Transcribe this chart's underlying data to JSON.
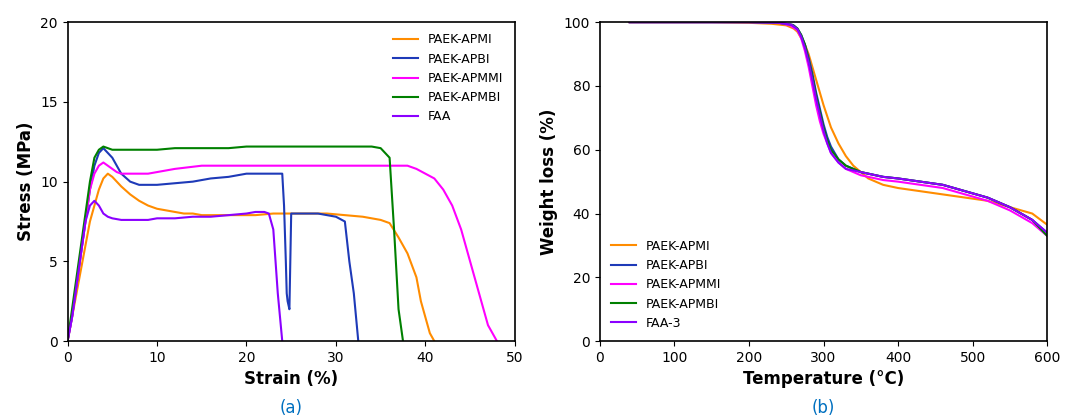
{
  "plot_a": {
    "title": "(a)",
    "xlabel": "Strain (%)",
    "ylabel": "Stress (MPa)",
    "xlim": [
      0,
      50
    ],
    "ylim": [
      0,
      20
    ],
    "xticks": [
      0,
      10,
      20,
      30,
      40,
      50
    ],
    "yticks": [
      0,
      5,
      10,
      15,
      20
    ],
    "legend_labels": [
      "PAEK-APMI",
      "PAEK-APBI",
      "PAEK-APMMI",
      "PAEK-APMBI",
      "FAA"
    ],
    "colors": [
      "#FF8C00",
      "#1E3AB8",
      "#FF00FF",
      "#008000",
      "#8B00FF"
    ],
    "series": {
      "PAEK_APMI": {
        "color": "#FF8C00",
        "x": [
          0,
          0.5,
          1,
          1.5,
          2,
          2.5,
          3,
          3.5,
          4,
          4.5,
          5,
          5.5,
          6,
          7,
          8,
          9,
          10,
          11,
          12,
          13,
          14,
          15,
          17,
          19,
          21,
          23,
          25,
          27,
          29,
          31,
          33,
          35,
          36,
          37,
          38,
          39,
          39.5,
          40,
          40.5,
          41
        ],
        "y": [
          0,
          1.5,
          3,
          4.5,
          6,
          7.5,
          8.5,
          9.5,
          10.2,
          10.5,
          10.3,
          10.0,
          9.7,
          9.2,
          8.8,
          8.5,
          8.3,
          8.2,
          8.1,
          8.0,
          8.0,
          7.9,
          7.9,
          7.9,
          7.9,
          8.0,
          8.0,
          8.0,
          8.0,
          7.9,
          7.8,
          7.6,
          7.4,
          6.5,
          5.5,
          4.0,
          2.5,
          1.5,
          0.5,
          0
        ]
      },
      "PAEK_APBI": {
        "color": "#1E3AB8",
        "x": [
          0,
          0.5,
          1,
          1.5,
          2,
          2.5,
          3,
          3.5,
          4,
          4.5,
          5,
          5.5,
          6,
          7,
          8,
          9,
          10,
          12,
          14,
          16,
          18,
          20,
          22,
          23,
          24,
          24.2,
          24.4,
          24.5,
          24.6,
          24.8,
          25,
          26,
          27,
          28,
          29,
          30,
          31,
          31.5,
          32,
          32.5
        ],
        "y": [
          0,
          1.5,
          3.5,
          5.5,
          7.5,
          9.5,
          11.0,
          11.8,
          12.1,
          11.8,
          11.5,
          11.0,
          10.5,
          10.0,
          9.8,
          9.8,
          9.8,
          9.9,
          10.0,
          10.2,
          10.3,
          10.5,
          10.5,
          10.5,
          10.5,
          8.5,
          5.0,
          3.0,
          2.5,
          2.0,
          8.0,
          8.0,
          8.0,
          8.0,
          7.9,
          7.8,
          7.5,
          5.0,
          3.0,
          0
        ]
      },
      "PAEK_APMMI": {
        "color": "#FF00FF",
        "x": [
          0,
          0.5,
          1,
          1.5,
          2,
          2.5,
          3,
          3.5,
          4,
          4.5,
          5,
          5.5,
          6,
          7,
          8,
          9,
          10,
          12,
          15,
          18,
          20,
          22,
          25,
          28,
          30,
          32,
          34,
          36,
          38,
          39,
          40,
          41,
          42,
          43,
          44,
          45,
          46,
          46.5,
          47,
          47.5,
          48
        ],
        "y": [
          0,
          1.5,
          3.5,
          5.5,
          7.5,
          9.5,
          10.5,
          11.0,
          11.2,
          11.0,
          10.8,
          10.6,
          10.5,
          10.5,
          10.5,
          10.5,
          10.6,
          10.8,
          11.0,
          11.0,
          11.0,
          11.0,
          11.0,
          11.0,
          11.0,
          11.0,
          11.0,
          11.0,
          11.0,
          10.8,
          10.5,
          10.2,
          9.5,
          8.5,
          7.0,
          5.0,
          3.0,
          2.0,
          1.0,
          0.5,
          0
        ]
      },
      "PAEK_APMBI": {
        "color": "#008000",
        "x": [
          0,
          0.5,
          1,
          1.5,
          2,
          2.5,
          3,
          3.5,
          4,
          5,
          6,
          7,
          8,
          10,
          12,
          15,
          18,
          20,
          22,
          25,
          28,
          30,
          32,
          34,
          35,
          36,
          36.5,
          37,
          37.5
        ],
        "y": [
          0,
          2,
          4,
          6,
          8,
          10,
          11.5,
          12.0,
          12.2,
          12.0,
          12.0,
          12.0,
          12.0,
          12.0,
          12.1,
          12.1,
          12.1,
          12.2,
          12.2,
          12.2,
          12.2,
          12.2,
          12.2,
          12.2,
          12.1,
          11.5,
          7.0,
          2.0,
          0
        ]
      },
      "FAA": {
        "color": "#8B00FF",
        "x": [
          0,
          0.5,
          1,
          1.5,
          2,
          2.5,
          3,
          3.5,
          4,
          4.5,
          5,
          6,
          7,
          8,
          9,
          10,
          12,
          14,
          16,
          18,
          20,
          21,
          22,
          22.5,
          23,
          23.5,
          24
        ],
        "y": [
          0,
          1.5,
          3.5,
          5.5,
          7.5,
          8.5,
          8.8,
          8.5,
          8.0,
          7.8,
          7.7,
          7.6,
          7.6,
          7.6,
          7.6,
          7.7,
          7.7,
          7.8,
          7.8,
          7.9,
          8.0,
          8.1,
          8.1,
          8.0,
          7.0,
          3.0,
          0
        ]
      }
    }
  },
  "plot_b": {
    "title": "(b)",
    "xlabel": "Temperature (°C)",
    "ylabel": "Weight loss (%)",
    "xlim": [
      0,
      600
    ],
    "ylim": [
      0,
      100
    ],
    "xticks": [
      0,
      100,
      200,
      300,
      400,
      500,
      600
    ],
    "yticks": [
      0,
      20,
      40,
      60,
      80,
      100
    ],
    "legend_labels": [
      "PAEK-APMI",
      "PAEK-APBI",
      "PAEK-APMMI",
      "PAEK-APMBI",
      "FAA-3"
    ],
    "colors": [
      "#FF8C00",
      "#1E3AB8",
      "#FF00FF",
      "#008000",
      "#8B00FF"
    ],
    "series": {
      "PAEK_APMI": {
        "color": "#FF8C00",
        "x": [
          40,
          100,
          150,
          200,
          230,
          250,
          260,
          265,
          270,
          275,
          280,
          285,
          290,
          295,
          300,
          310,
          320,
          330,
          340,
          350,
          360,
          370,
          380,
          390,
          400,
          430,
          460,
          490,
          520,
          550,
          580,
          600
        ],
        "y": [
          100,
          100,
          100,
          99.8,
          99.5,
          99.0,
          98.0,
          97.0,
          95.0,
          93.0,
          90.0,
          86.0,
          82.0,
          78.0,
          74.0,
          67.0,
          62.0,
          58.0,
          55.0,
          53.0,
          51.0,
          50.0,
          49.0,
          48.5,
          48.0,
          47.0,
          46.0,
          45.0,
          44.0,
          42.0,
          40.0,
          36.5
        ]
      },
      "PAEK_APBI": {
        "color": "#1E3AB8",
        "x": [
          40,
          100,
          150,
          200,
          240,
          260,
          265,
          270,
          275,
          280,
          285,
          290,
          295,
          300,
          305,
          310,
          320,
          330,
          340,
          350,
          360,
          380,
          400,
          430,
          460,
          490,
          520,
          550,
          580,
          600
        ],
        "y": [
          100,
          100,
          100,
          100,
          99.8,
          99.0,
          98.0,
          96.0,
          93.0,
          89.0,
          84.0,
          78.0,
          73.0,
          68.0,
          64.0,
          61.0,
          57.0,
          55.0,
          54.0,
          53.0,
          52.5,
          51.5,
          51.0,
          50.0,
          49.0,
          47.0,
          45.0,
          42.0,
          38.0,
          34.0
        ]
      },
      "PAEK_APMMI": {
        "color": "#FF00FF",
        "x": [
          40,
          100,
          150,
          200,
          240,
          255,
          265,
          270,
          275,
          280,
          285,
          290,
          295,
          300,
          310,
          320,
          330,
          340,
          350,
          360,
          370,
          380,
          400,
          430,
          460,
          490,
          520,
          550,
          580,
          600
        ],
        "y": [
          100,
          100,
          100,
          100,
          99.8,
          99.0,
          97.5,
          95.0,
          91.0,
          86.0,
          80.0,
          74.0,
          69.0,
          65.0,
          59.0,
          56.0,
          54.0,
          53.0,
          52.0,
          51.5,
          51.0,
          50.5,
          50.0,
          49.0,
          48.0,
          46.0,
          44.0,
          41.0,
          37.0,
          33.0
        ]
      },
      "PAEK_APMBI": {
        "color": "#008000",
        "x": [
          40,
          100,
          150,
          200,
          240,
          258,
          265,
          270,
          275,
          280,
          285,
          290,
          295,
          300,
          305,
          310,
          320,
          330,
          340,
          350,
          360,
          380,
          400,
          430,
          460,
          490,
          520,
          550,
          580,
          600
        ],
        "y": [
          100,
          100,
          100,
          100,
          99.8,
          99.2,
          98.0,
          96.0,
          93.0,
          88.0,
          83.0,
          77.0,
          72.0,
          67.0,
          63.0,
          60.0,
          57.0,
          55.0,
          54.0,
          53.0,
          52.5,
          51.5,
          51.0,
          50.0,
          49.0,
          47.0,
          45.0,
          42.0,
          38.0,
          33.0
        ]
      },
      "FAA_3": {
        "color": "#8B00FF",
        "x": [
          40,
          100,
          150,
          200,
          240,
          257,
          265,
          270,
          275,
          280,
          285,
          290,
          295,
          300,
          305,
          310,
          320,
          330,
          340,
          350,
          360,
          380,
          400,
          430,
          460,
          490,
          520,
          550,
          580,
          600
        ],
        "y": [
          100,
          100,
          100,
          100,
          99.8,
          99.2,
          97.8,
          95.5,
          92.0,
          87.5,
          82.0,
          76.0,
          71.0,
          66.0,
          62.0,
          59.0,
          56.0,
          54.0,
          53.5,
          53.0,
          52.5,
          51.5,
          51.0,
          50.0,
          49.0,
          47.0,
          45.0,
          42.0,
          38.0,
          34.0
        ]
      }
    }
  },
  "title_color": "#0070C0",
  "label_fontsize": 12,
  "tick_fontsize": 10,
  "legend_fontsize": 9,
  "linewidth": 1.5,
  "title_fontsize": 12
}
